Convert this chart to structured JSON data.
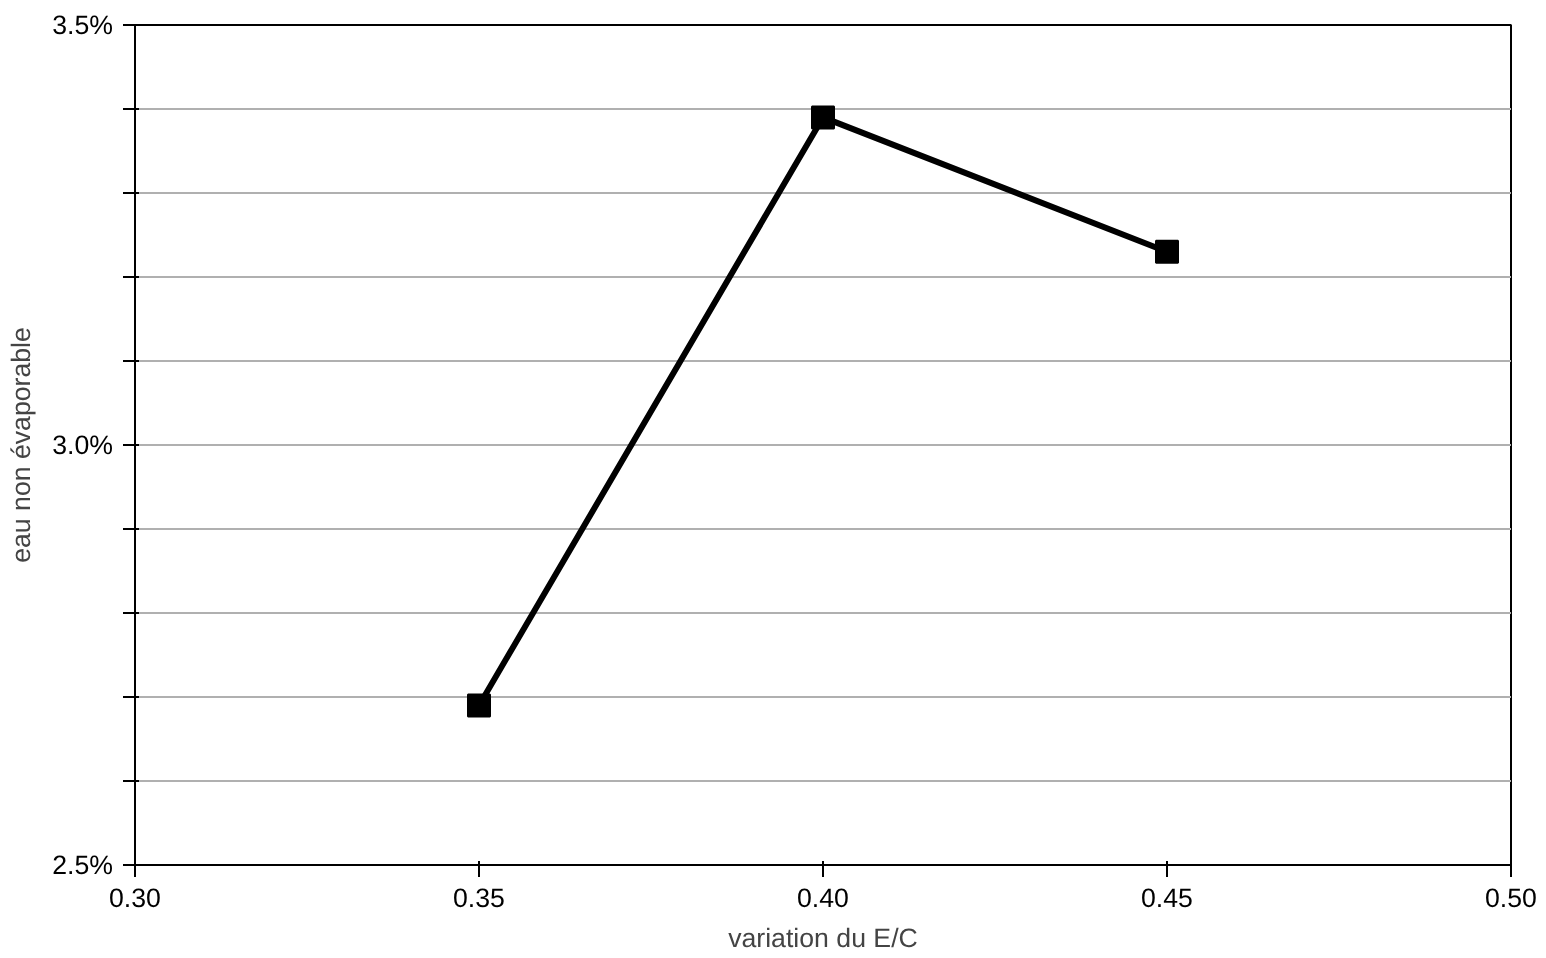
{
  "chart_data": {
    "type": "line",
    "xlabel": "variation du E/C",
    "ylabel": "eau non évaporable",
    "x": [
      0.35,
      0.4,
      0.45
    ],
    "series": [
      {
        "color": "#000000",
        "values": [
          2.69,
          3.39,
          3.23
        ]
      }
    ],
    "xlim": [
      0.3,
      0.5
    ],
    "xticks": [
      {
        "value": 0.3,
        "label": "0.30"
      },
      {
        "value": 0.35,
        "label": "0.35"
      },
      {
        "value": 0.4,
        "label": "0.40"
      },
      {
        "value": 0.45,
        "label": "0.45"
      },
      {
        "value": 0.5,
        "label": "0.50"
      }
    ],
    "ylim": [
      2.5,
      3.5
    ],
    "yticks": [
      {
        "value": 2.5,
        "label": "2.5%"
      },
      {
        "value": 2.6,
        "label": null
      },
      {
        "value": 2.7,
        "label": null
      },
      {
        "value": 2.8,
        "label": null
      },
      {
        "value": 2.9,
        "label": null
      },
      {
        "value": 3.0,
        "label": "3.0%"
      },
      {
        "value": 3.1,
        "label": null
      },
      {
        "value": 3.2,
        "label": null
      },
      {
        "value": 3.3,
        "label": null
      },
      {
        "value": 3.4,
        "label": null
      },
      {
        "value": 3.5,
        "label": "3.5%"
      }
    ],
    "grid": "y",
    "marker": "square",
    "line_style": "solid"
  }
}
